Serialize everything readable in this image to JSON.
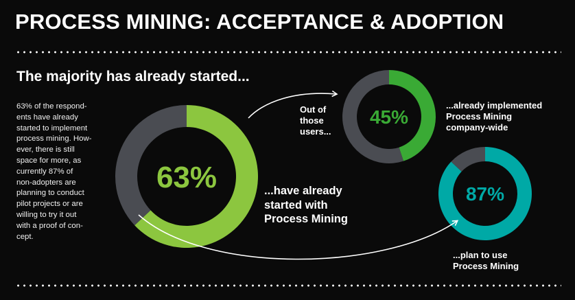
{
  "header": {
    "title": "PROCESS MINING: ACCEPTANCE & ADOPTION",
    "subtitle": "The majority has already started..."
  },
  "body_text": "63% of the respond-\nents have already\nstarted to implement\nprocess mining. How-\never, there is still\nspace for more, as\ncurrently 87% of\nnon-adopters are\nplanning to conduct\npilot projects or are\nwilling to try it out\nwith a proof of con-\ncept.",
  "labels": {
    "started": "...have already\nstarted with\nProcess Mining",
    "out_of_those": "Out of\nthose\nusers...",
    "implemented": "...already implemented\nProcess Mining\ncompany-wide",
    "plan": "...plan to use\nProcess Mining"
  },
  "colors": {
    "background": "#0a0a0a",
    "remainder": "#4a4c52",
    "green_bright": "#8cc63f",
    "green": "#3aaa35",
    "teal": "#00a9a6"
  },
  "chart_data": [
    {
      "type": "pie",
      "title": "",
      "values": [
        63,
        37
      ],
      "value_label": "63%",
      "colors": [
        "#8cc63f",
        "#4a4c52"
      ]
    },
    {
      "type": "pie",
      "title": "",
      "values": [
        45,
        55
      ],
      "value_label": "45%",
      "colors": [
        "#3aaa35",
        "#4a4c52"
      ]
    },
    {
      "type": "pie",
      "title": "",
      "values": [
        87,
        13
      ],
      "value_label": "87%",
      "colors": [
        "#00a9a6",
        "#4a4c52"
      ]
    }
  ]
}
